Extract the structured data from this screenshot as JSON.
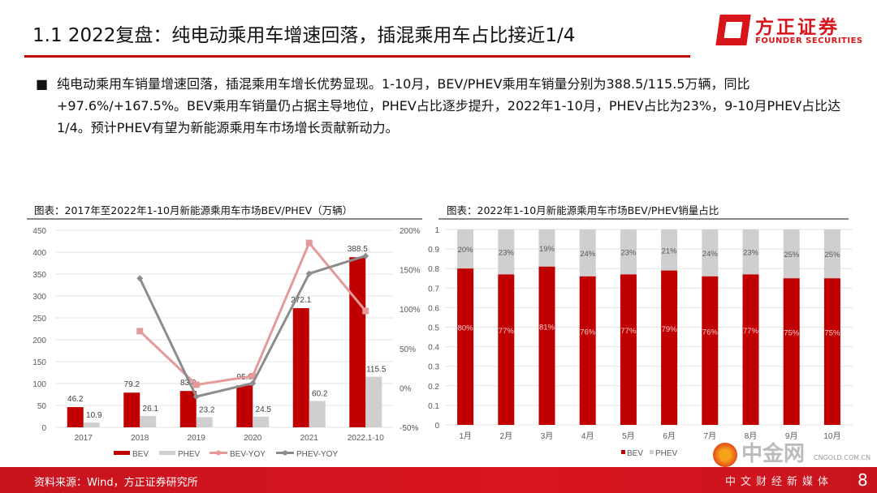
{
  "header": {
    "title": "1.1 2022复盘：纯电动乘用车增速回落，插混乘用车占比接近1/4",
    "logo_cn": "方正证券",
    "logo_en": "FOUNDER SECURITIES"
  },
  "bullet": {
    "marker": "■",
    "text": "纯电动乘用车销量增速回落，插混乘用车增长优势显现。1-10月，BEV/PHEV乘用车销量分别为388.5/115.5万辆，同比+97.6%/+167.5%。BEV乘用车销量仍占据主导地位，PHEV占比逐步提升，2022年1-10月，PHEV占比为23%，9-10月PHEV占比达1/4。预计PHEV有望为新能源乘用车市场增长贡献新动力。"
  },
  "colors": {
    "bev": "#c00000",
    "phev": "#d0cece",
    "bev_yoy": "#e49a9a",
    "phev_yoy": "#8c8c8c",
    "accent": "#d7141a"
  },
  "chart_data": [
    {
      "type": "bar",
      "title": "图表：2017年至2022年1-10月新能源乘用车市场BEV/PHEV（万辆）",
      "categories": [
        "2017",
        "2018",
        "2019",
        "2020",
        "2021",
        "2022.1-10"
      ],
      "ylim": [
        0,
        450
      ],
      "yticks": [
        "0",
        "50",
        "100",
        "150",
        "200",
        "250",
        "300",
        "350",
        "400",
        "450"
      ],
      "y2lim": [
        -50,
        200
      ],
      "y2ticks": [
        "-50%",
        "0%",
        "50%",
        "100%",
        "150%",
        "200%"
      ],
      "series": [
        {
          "name": "BEV",
          "kind": "bar",
          "values": [
            46.2,
            79.2,
            83.0,
            95.9,
            272.1,
            388.5
          ],
          "labels": [
            "46.2",
            "79.2",
            "83.0",
            "95.9",
            "272.1",
            "388.5"
          ]
        },
        {
          "name": "PHEV",
          "kind": "bar",
          "values": [
            10.9,
            26.1,
            23.2,
            24.5,
            60.2,
            115.5
          ],
          "labels": [
            "10.9",
            "26.1",
            "23.2",
            "24.5",
            "60.2",
            "115.5"
          ]
        },
        {
          "name": "BEV-YOY",
          "kind": "line",
          "axis": "right",
          "values": [
            null,
            72,
            4,
            15,
            184,
            97.6
          ]
        },
        {
          "name": "PHEV-YOY",
          "kind": "line",
          "axis": "right",
          "values": [
            null,
            139,
            -11,
            6,
            145,
            167.5
          ]
        }
      ],
      "legend": "bottom",
      "grid": true
    },
    {
      "type": "bar",
      "stacked": true,
      "title": "图表：2022年1-10月新能源乘用车市场BEV/PHEV销量占比",
      "categories": [
        "1月",
        "2月",
        "3月",
        "4月",
        "5月",
        "6月",
        "7月",
        "8月",
        "9月",
        "10月"
      ],
      "ylim": [
        0,
        1
      ],
      "yticks": [
        "0",
        "0.1",
        "0.2",
        "0.3",
        "0.4",
        "0.5",
        "0.6",
        "0.7",
        "0.8",
        "0.9",
        "1"
      ],
      "series": [
        {
          "name": "BEV",
          "values": [
            0.8,
            0.77,
            0.81,
            0.76,
            0.77,
            0.79,
            0.76,
            0.77,
            0.75,
            0.75
          ],
          "labels": [
            "80%",
            "77%",
            "81%",
            "76%",
            "77%",
            "79%",
            "76%",
            "77%",
            "75%",
            "75%"
          ]
        },
        {
          "name": "PHEV",
          "values": [
            0.2,
            0.23,
            0.19,
            0.24,
            0.23,
            0.21,
            0.24,
            0.23,
            0.25,
            0.25
          ],
          "labels": [
            "20%",
            "23%",
            "19%",
            "24%",
            "23%",
            "21%",
            "24%",
            "23%",
            "25%",
            "25%"
          ]
        }
      ],
      "legend": "bottom",
      "grid": true
    }
  ],
  "footer": {
    "source": "资料来源：Wind，方正证券研究所",
    "page": "8"
  },
  "watermark": {
    "name": "中金网",
    "url": "CNGOLD.COM.CN",
    "slogan": "中文财经新媒体"
  }
}
